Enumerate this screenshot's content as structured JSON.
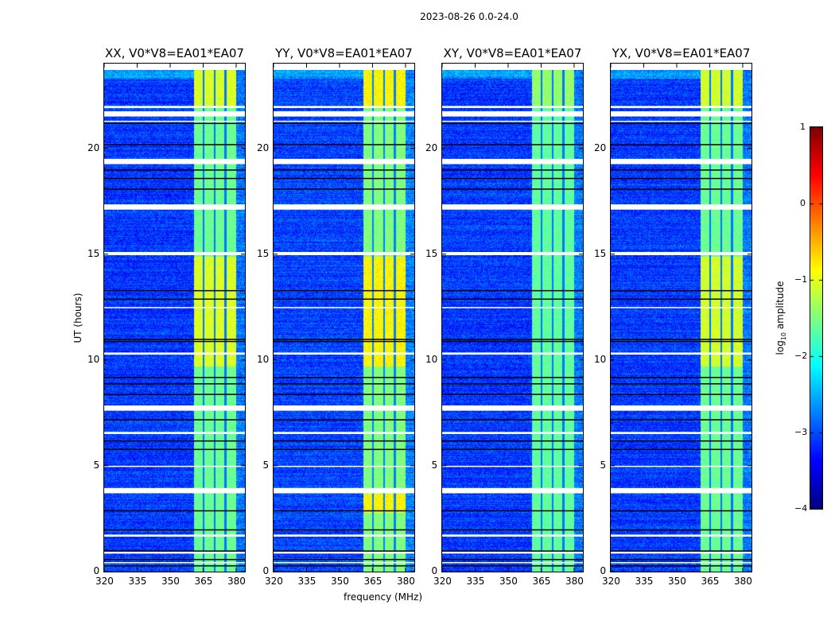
{
  "chart_data": {
    "type": "heatmap",
    "title": "2023-08-26 0.0-24.0",
    "xlabel": "frequency (MHz)",
    "ylabel": "UT (hours)",
    "xlim": [
      320,
      384
    ],
    "ylim": [
      0,
      24
    ],
    "xticks": [
      320,
      335,
      350,
      365,
      380
    ],
    "yticks": [
      0,
      5,
      10,
      15,
      20
    ],
    "colormap": "jet",
    "colorbar": {
      "label_base": "log",
      "label_sub": "10",
      "label_rest": " amplitude",
      "range": [
        -4,
        1
      ],
      "ticks": [
        "1",
        "0",
        "−1",
        "−2",
        "−3",
        "−4"
      ]
    },
    "rfi_band_mhz": [
      360.5,
      380
    ],
    "rfi_gaps_mhz": [
      365,
      370,
      375
    ],
    "flagged_hours": [
      [
        23.7,
        24
      ],
      [
        22.0,
        21.9
      ],
      [
        21.75,
        21.5
      ],
      [
        21.3,
        21.25
      ],
      [
        19.5,
        19.25
      ],
      [
        17.35,
        17.1
      ],
      [
        15.1,
        14.95
      ],
      [
        12.5,
        12.45
      ],
      [
        10.35,
        10.25
      ],
      [
        7.85,
        7.6
      ],
      [
        6.6,
        6.5
      ],
      [
        5.0,
        4.95
      ],
      [
        3.95,
        3.7
      ],
      [
        1.75,
        1.65
      ],
      [
        0.95,
        0.85
      ],
      [
        0.45,
        0.4
      ]
    ],
    "black_hours": [
      21.2,
      20.2,
      19.0,
      18.6,
      18.1,
      13.3,
      12.9,
      11.0,
      10.9,
      9.2,
      8.9,
      8.4,
      7.2,
      6.2,
      5.8,
      2.9,
      2.0,
      1.0,
      0.6,
      0.3
    ],
    "panels": [
      {
        "title": "XX, V0*V8=EA01*EA07",
        "base": -3.1,
        "band": -1.6,
        "bright": -1.05,
        "bright_hours": [
          [
            9.7,
            14.9
          ],
          [
            21.9,
            23.7
          ]
        ]
      },
      {
        "title": "YY, V0*V8=EA01*EA07",
        "base": -3.05,
        "band": -1.5,
        "bright": -0.85,
        "bright_hours": [
          [
            9.7,
            14.9
          ],
          [
            21.9,
            23.7
          ],
          [
            2.8,
            3.7
          ]
        ]
      },
      {
        "title": "XY, V0*V8=EA01*EA07",
        "base": -3.1,
        "band": -1.65,
        "bright": -1.4,
        "bright_hours": [
          [
            21.9,
            23.7
          ]
        ]
      },
      {
        "title": "YX, V0*V8=EA01*EA07",
        "base": -3.1,
        "band": -1.6,
        "bright": -1.1,
        "bright_hours": [
          [
            9.7,
            14.9
          ],
          [
            21.9,
            23.7
          ]
        ]
      }
    ]
  }
}
